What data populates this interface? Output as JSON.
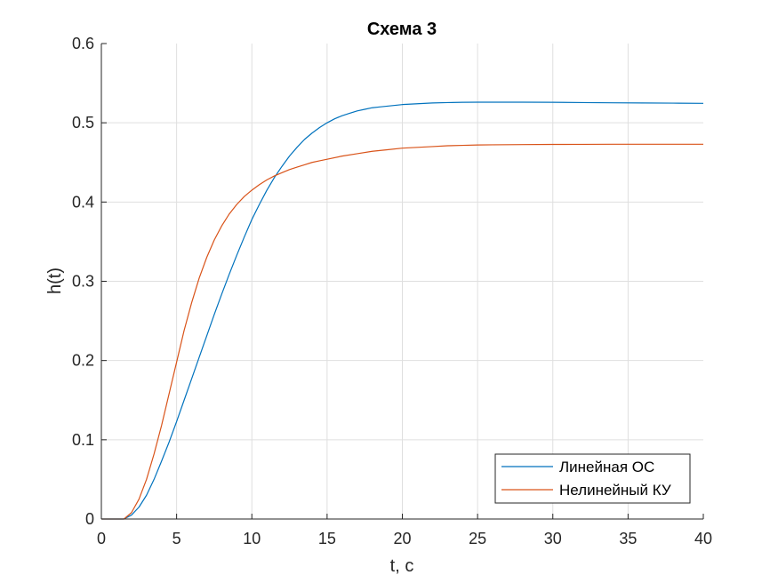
{
  "chart_data": {
    "type": "line",
    "title": "Схема 3",
    "xlabel": "t, с",
    "ylabel": "h(t)",
    "xlim": [
      0,
      40
    ],
    "ylim": [
      0,
      0.6
    ],
    "xticks": [
      0,
      5,
      10,
      15,
      20,
      25,
      30,
      35,
      40
    ],
    "xtick_labels": [
      "0",
      "5",
      "10",
      "15",
      "20",
      "25",
      "30",
      "35",
      "40"
    ],
    "yticks": [
      0,
      0.1,
      0.2,
      0.3,
      0.4,
      0.5,
      0.6
    ],
    "ytick_labels": [
      "0",
      "0.1",
      "0.2",
      "0.3",
      "0.4",
      "0.5",
      "0.6"
    ],
    "grid": true,
    "legend_position": "bottom-right",
    "series": [
      {
        "name": "Линейная ОС",
        "color": "#0072BD",
        "x": [
          0,
          1,
          1.5,
          2,
          2.5,
          3,
          3.5,
          4,
          4.5,
          5,
          5.5,
          6,
          6.5,
          7,
          7.5,
          8,
          8.5,
          9,
          9.5,
          10,
          10.5,
          11,
          11.5,
          12,
          12.5,
          13,
          13.5,
          14,
          14.5,
          15,
          15.5,
          16,
          16.5,
          17,
          17.5,
          18,
          18.5,
          19,
          19.5,
          20,
          21,
          22,
          23,
          24,
          25,
          26,
          27,
          28,
          30,
          32,
          34,
          36,
          38,
          40
        ],
        "y": [
          0,
          0,
          0,
          0.005,
          0.015,
          0.03,
          0.05,
          0.073,
          0.097,
          0.123,
          0.15,
          0.177,
          0.204,
          0.231,
          0.258,
          0.284,
          0.309,
          0.333,
          0.356,
          0.378,
          0.397,
          0.415,
          0.431,
          0.445,
          0.458,
          0.469,
          0.479,
          0.487,
          0.494,
          0.5,
          0.505,
          0.509,
          0.512,
          0.515,
          0.517,
          0.519,
          0.52,
          0.521,
          0.522,
          0.523,
          0.524,
          0.525,
          0.5255,
          0.5258,
          0.526,
          0.526,
          0.526,
          0.526,
          0.5258,
          0.5255,
          0.5252,
          0.525,
          0.5248,
          0.5245
        ]
      },
      {
        "name": "Нелинейный КУ",
        "color": "#D95319",
        "x": [
          0,
          1,
          1.5,
          2,
          2.5,
          3,
          3.5,
          4,
          4.5,
          5,
          5.5,
          6,
          6.5,
          7,
          7.5,
          8,
          8.5,
          9,
          9.5,
          10,
          10.5,
          11,
          11.5,
          12,
          12.5,
          13,
          13.5,
          14,
          14.5,
          15,
          16,
          17,
          18,
          19,
          20,
          21,
          22,
          23,
          24,
          25,
          26,
          28,
          30,
          32,
          34,
          36,
          38,
          40
        ],
        "y": [
          0,
          0,
          0,
          0.008,
          0.025,
          0.05,
          0.082,
          0.118,
          0.158,
          0.198,
          0.238,
          0.273,
          0.304,
          0.33,
          0.352,
          0.37,
          0.385,
          0.397,
          0.407,
          0.415,
          0.422,
          0.428,
          0.433,
          0.437,
          0.441,
          0.444,
          0.447,
          0.45,
          0.452,
          0.454,
          0.458,
          0.461,
          0.464,
          0.466,
          0.468,
          0.469,
          0.47,
          0.471,
          0.4715,
          0.472,
          0.4722,
          0.4725,
          0.4727,
          0.4728,
          0.4729,
          0.4729,
          0.4729,
          0.4729
        ]
      }
    ]
  }
}
